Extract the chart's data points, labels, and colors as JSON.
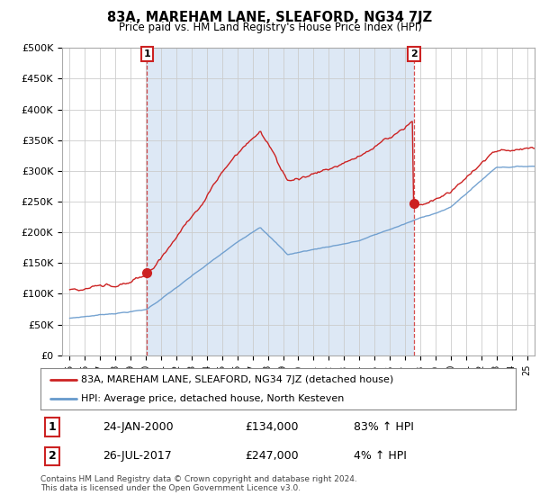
{
  "title": "83A, MAREHAM LANE, SLEAFORD, NG34 7JZ",
  "subtitle": "Price paid vs. HM Land Registry's House Price Index (HPI)",
  "ylabel_ticks": [
    "£0",
    "£50K",
    "£100K",
    "£150K",
    "£200K",
    "£250K",
    "£300K",
    "£350K",
    "£400K",
    "£450K",
    "£500K"
  ],
  "ytick_values": [
    0,
    50000,
    100000,
    150000,
    200000,
    250000,
    300000,
    350000,
    400000,
    450000,
    500000
  ],
  "ylim": [
    0,
    500000
  ],
  "xlim_start": 1994.5,
  "xlim_end": 2025.5,
  "red_line_color": "#cc2222",
  "blue_line_color": "#6699cc",
  "shade_color": "#dde8f5",
  "marker1_x": 2000.07,
  "marker1_y": 134000,
  "marker2_x": 2017.58,
  "marker2_y": 247000,
  "vline1_x": 2000.07,
  "vline2_x": 2017.58,
  "legend_line1": "83A, MAREHAM LANE, SLEAFORD, NG34 7JZ (detached house)",
  "legend_line2": "HPI: Average price, detached house, North Kesteven",
  "table_row1_num": "1",
  "table_row1_date": "24-JAN-2000",
  "table_row1_price": "£134,000",
  "table_row1_hpi": "83% ↑ HPI",
  "table_row2_num": "2",
  "table_row2_date": "26-JUL-2017",
  "table_row2_price": "£247,000",
  "table_row2_hpi": "4% ↑ HPI",
  "footnote": "Contains HM Land Registry data © Crown copyright and database right 2024.\nThis data is licensed under the Open Government Licence v3.0.",
  "background_color": "#ffffff",
  "grid_color": "#cccccc"
}
